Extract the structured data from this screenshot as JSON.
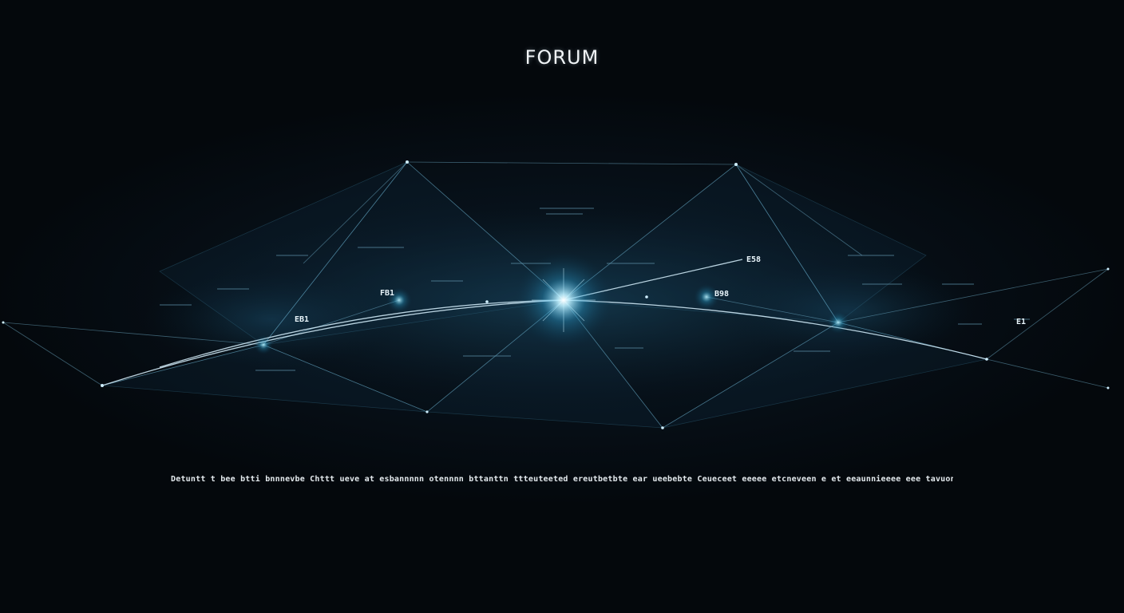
{
  "title": "FORUM",
  "caption": "Detuntt t bee btti bnnnevbe  Chttt ueve at esbannnnn otennnn bttanttn ttteuteeted ereutbetbte ear ueebebte  Ceueceet eeeee etcneveen e et eeaunnieeee eee tavuonneene eecnet",
  "labels": [
    "FB1",
    "EB1",
    "E58",
    "B98",
    "E1"
  ],
  "colors": {
    "background": "#05090d",
    "accent": "#6fd6ff",
    "node": "#cfefff",
    "text": "#f1f5f8"
  }
}
